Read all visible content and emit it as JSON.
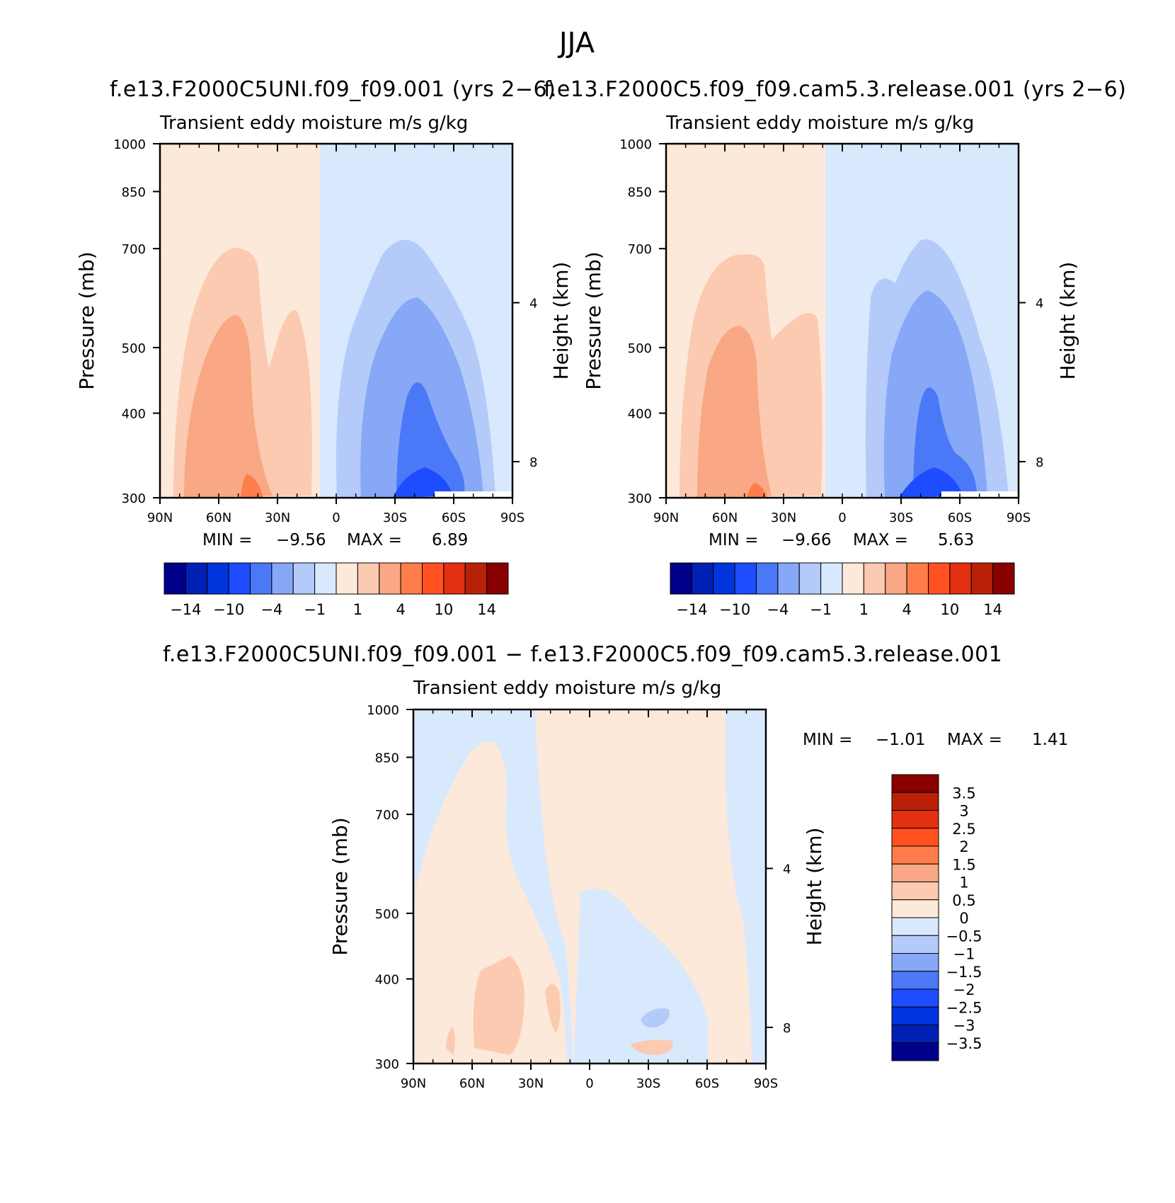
{
  "figure": {
    "title": "JJA"
  },
  "colors": {
    "palette_12": [
      "#00008b",
      "#0020b4",
      "#0034dc",
      "#1e4cff",
      "#4a78f7",
      "#86a8f6",
      "#b4cbfa",
      "#d9e9fd",
      "#fde9d9",
      "#fbcab0",
      "#f9a784",
      "#ff7d4a",
      "#ff5220",
      "#e23010",
      "#b82008",
      "#880000"
    ],
    "diff_palette": [
      "#00008b",
      "#0020b4",
      "#0034dc",
      "#1e4cff",
      "#4a78f7",
      "#86a8f6",
      "#b4cbfa",
      "#d9e9fd",
      "#fde9d9",
      "#fbcab0",
      "#f9a784",
      "#ff7d4a",
      "#ff5220",
      "#e23010",
      "#b82008",
      "#880000"
    ]
  },
  "chart_data": [
    {
      "id": "panel1",
      "type": "heatmap",
      "title": "f.e13.F2000C5UNI.f09_f09.001 (yrs 2-6)",
      "subtitle": "Transient eddy moisture m/s g/kg",
      "xlabel": "",
      "ylabel": "Pressure (mb)",
      "y2label": "Height (km)",
      "xticks": [
        "90N",
        "60N",
        "30N",
        "0",
        "30S",
        "60S",
        "90S"
      ],
      "xlim": [
        90,
        -90
      ],
      "yticks": [
        "300",
        "400",
        "500",
        "700",
        "850",
        "1000"
      ],
      "ylim": [
        1000,
        300
      ],
      "y2ticks": [
        "8",
        "4"
      ],
      "min_label": "MIN =",
      "min": "-9.56",
      "max_label": "MAX =",
      "max": "6.89",
      "colorbar_labels": [
        "-14",
        "-10",
        "-4",
        "-1",
        "1",
        "4",
        "10",
        "14"
      ],
      "colorbar_levels": 16
    },
    {
      "id": "panel2",
      "type": "heatmap",
      "title": "f.e13.F2000C5.f09_f09.cam5.3.release.001 (yrs 2-6)",
      "subtitle": "Transient eddy moisture m/s g/kg",
      "xlabel": "",
      "ylabel": "Pressure (mb)",
      "y2label": "Height (km)",
      "xticks": [
        "90N",
        "60N",
        "30N",
        "0",
        "30S",
        "60S",
        "90S"
      ],
      "xlim": [
        90,
        -90
      ],
      "yticks": [
        "300",
        "400",
        "500",
        "700",
        "850",
        "1000"
      ],
      "ylim": [
        1000,
        300
      ],
      "y2ticks": [
        "8",
        "4"
      ],
      "min_label": "MIN =",
      "min": "-9.66",
      "max_label": "MAX =",
      "max": "5.63",
      "colorbar_labels": [
        "-14",
        "-10",
        "-4",
        "-1",
        "1",
        "4",
        "10",
        "14"
      ],
      "colorbar_levels": 16
    },
    {
      "id": "panel3",
      "type": "heatmap",
      "title": "f.e13.F2000C5UNI.f09_f09.001 - f.e13.F2000C5.f09_f09.cam5.3.release.001",
      "subtitle": "Transient eddy moisture m/s g/kg",
      "xlabel": "",
      "ylabel": "Pressure (mb)",
      "y2label": "Height (km)",
      "xticks": [
        "90N",
        "60N",
        "30N",
        "0",
        "30S",
        "60S",
        "90S"
      ],
      "xlim": [
        90,
        -90
      ],
      "yticks": [
        "300",
        "400",
        "500",
        "700",
        "850",
        "1000"
      ],
      "ylim": [
        1000,
        300
      ],
      "y2ticks": [
        "8",
        "4"
      ],
      "min_label": "MIN =",
      "min": "-1.01",
      "max_label": "MAX =",
      "max": "1.41",
      "colorbar_labels": [
        "3.5",
        "3",
        "2.5",
        "2",
        "1.5",
        "1",
        "0.5",
        "0",
        "-0.5",
        "-1",
        "-1.5",
        "-2",
        "-2.5",
        "-3",
        "-3.5"
      ],
      "colorbar_levels": 16
    }
  ]
}
